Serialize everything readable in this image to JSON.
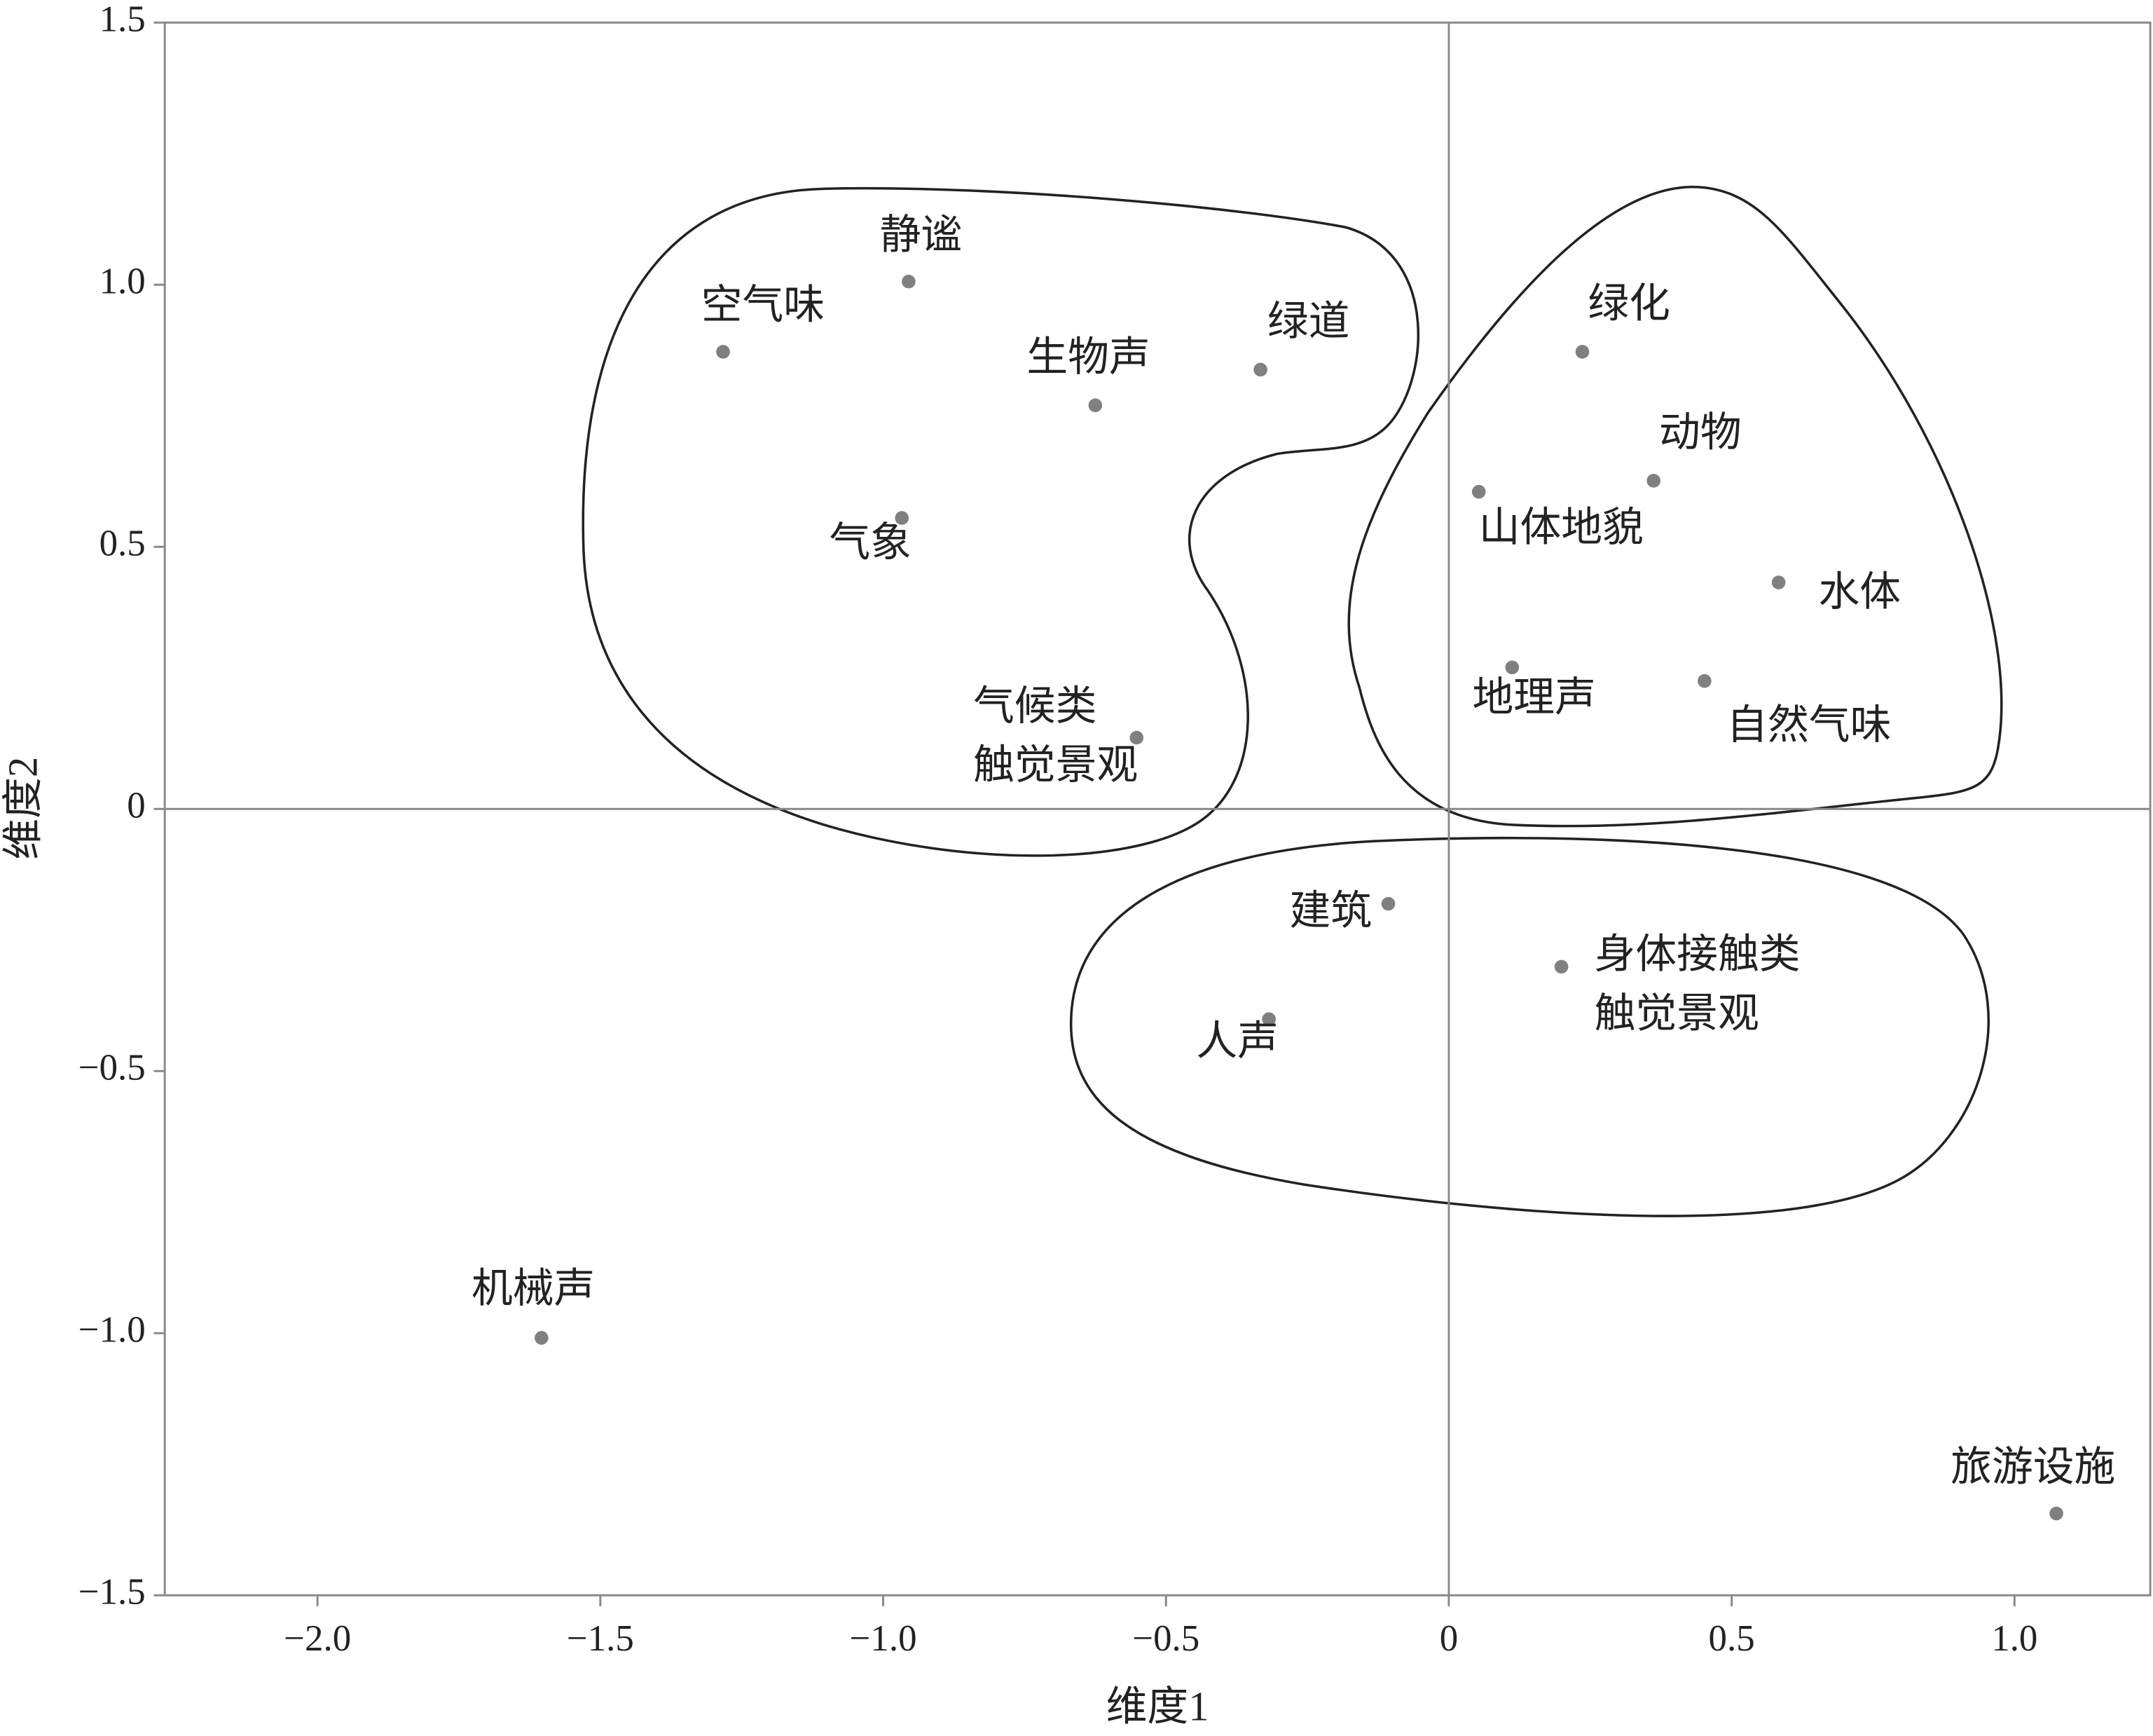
{
  "chart_data": {
    "type": "scatter",
    "x_label": "维度1",
    "y_label": "维度2",
    "xlim": [
      -2.27,
      1.24
    ],
    "ylim": [
      -1.5,
      1.5
    ],
    "xticks": [
      {
        "value": -2,
        "label": "−2.0"
      },
      {
        "value": -1.5,
        "label": "−1.5"
      },
      {
        "value": -1,
        "label": "−1.0"
      },
      {
        "value": -0.5,
        "label": "−0.5"
      },
      0,
      0.5,
      {
        "value": 1,
        "label": "1.0"
      }
    ],
    "yticks": [
      {
        "value": -1.5,
        "label": "−1.5"
      },
      {
        "value": -1,
        "label": "−1.0"
      },
      {
        "value": -0.5,
        "label": "−0.5"
      },
      0,
      0.5,
      {
        "value": 1,
        "label": "1.0"
      },
      1.5
    ],
    "color": "#808080",
    "labels": [
      [
        "空气味"
      ],
      [
        "静谧"
      ],
      [
        "生物声"
      ],
      [
        "绿道"
      ],
      [
        "气象"
      ],
      [
        "气候类",
        "触觉景观"
      ],
      [
        "绿化"
      ],
      [
        "动物"
      ],
      [
        "山体地貌"
      ],
      [
        "水体"
      ],
      [
        "地理声"
      ],
      [
        "自然气味"
      ],
      [
        "建筑"
      ],
      [
        "身体接触类",
        "触觉景观"
      ],
      [
        "人声"
      ],
      [
        "机械声"
      ],
      [
        "旅游设施"
      ]
    ],
    "x": [
      -1.283,
      -0.955,
      -0.625,
      -0.333,
      -0.967,
      -0.552,
      0.236,
      0.362,
      0.053,
      0.583,
      0.112,
      0.452,
      -0.107,
      0.199,
      -0.318,
      -1.604,
      1.074
    ],
    "values": [
      0.872,
      1.006,
      0.77,
      0.838,
      0.555,
      0.136,
      0.872,
      0.626,
      0.605,
      0.432,
      0.27,
      0.244,
      -0.181,
      -0.301,
      -0.401,
      -1.009,
      -1.344
    ]
  }
}
